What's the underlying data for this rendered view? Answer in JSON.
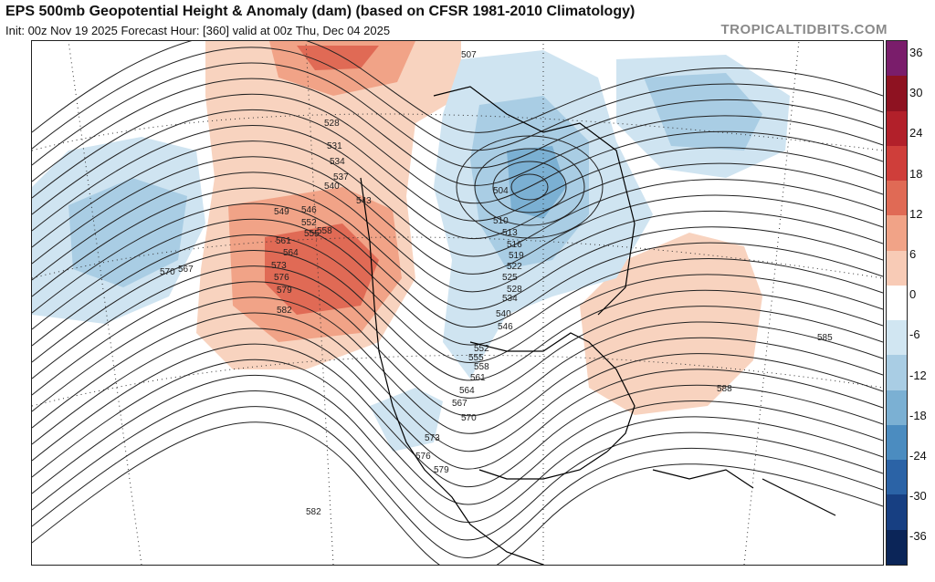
{
  "header": {
    "title": "EPS 500mb Geopotential Height & Anomaly (dam) (based on CFSR 1981-2010 Climatology)",
    "subtitle": "Init: 00z Nov 19 2025   Forecast Hour: [360]   valid at 00z Thu, Dec 04 2025",
    "brand": "TROPICALTIDBITS.COM"
  },
  "colorbar": {
    "labels": [
      "36",
      "30",
      "24",
      "18",
      "12",
      "6",
      "0",
      "-6",
      "-12",
      "-18",
      "-24",
      "-30",
      "-36"
    ],
    "colors": [
      "#7a1d6b",
      "#8e1221",
      "#b2202a",
      "#cf3e3a",
      "#e06a55",
      "#f1a387",
      "#f8cbb6",
      "#ffffff",
      "#d1e6f2",
      "#a9cde4",
      "#7bb0d3",
      "#4b8cc0",
      "#2b63a6",
      "#173f82",
      "#0b2558"
    ]
  },
  "contour_labels": [
    "507",
    "528",
    "531",
    "534",
    "537",
    "540",
    "543",
    "546",
    "549",
    "552",
    "555",
    "558",
    "561",
    "564",
    "567",
    "570",
    "573",
    "576",
    "579",
    "582",
    "585",
    "588",
    "504",
    "510",
    "513",
    "516",
    "519",
    "522",
    "525",
    "528",
    "534",
    "540",
    "546",
    "552",
    "555",
    "558",
    "561",
    "564",
    "567",
    "570",
    "573",
    "576",
    "579",
    "582"
  ],
  "anomaly_colors": {
    "pos_light": "#f8d3bf",
    "pos_mid": "#f1a387",
    "pos_strong": "#e06a55",
    "neg_light": "#cfe4f1",
    "neg_mid": "#a9cde4",
    "neg_strong": "#7bb0d3"
  }
}
